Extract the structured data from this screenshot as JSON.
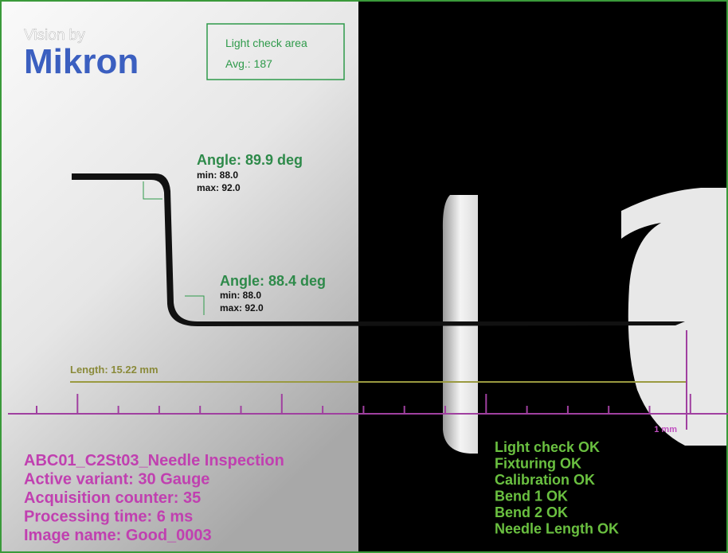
{
  "branding": {
    "tagline": "Vision by",
    "name": "Mikron"
  },
  "light_check": {
    "title": "Light check area",
    "average": "Avg.: 187"
  },
  "angles": [
    {
      "label": "Angle: 89.9 deg",
      "min": "min: 88.0",
      "max": "max: 92.0"
    },
    {
      "label": "Angle: 88.4 deg",
      "min": "min: 88.0",
      "max": "max: 92.0"
    }
  ],
  "length": "Length: 15.22 mm",
  "scale": "1 mm",
  "info": [
    "ABC01_C2St03_Needle Inspection",
    "Active variant: 30 Gauge",
    "Acquisition counter: 35",
    "Processing time: 6 ms",
    "Image name: Good_0003"
  ],
  "status": [
    "Light check OK",
    "Fixturing OK",
    "Calibration OK",
    "Bend 1 OK",
    "Bend 2 OK",
    "Needle Length OK"
  ]
}
